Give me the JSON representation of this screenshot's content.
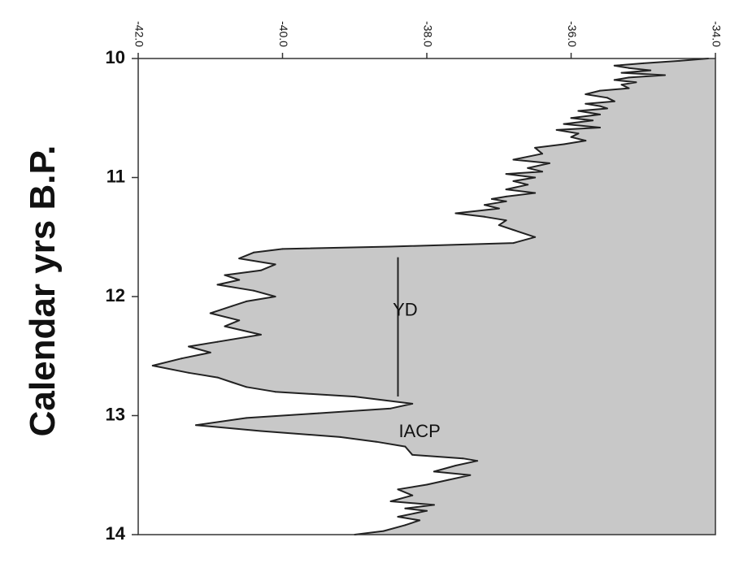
{
  "chart_data": {
    "type": "area",
    "title": "",
    "xlabel": "",
    "ylabel": "Calendar  yrs B.P.",
    "x_axis_position": "top",
    "x_tick_labels_rotated": true,
    "xlim": [
      -42.0,
      -34.0
    ],
    "x_reversed": false,
    "ylim": [
      10,
      14
    ],
    "y_reversed": true,
    "x_ticks": [
      -42.0,
      -40.0,
      -38.0,
      -36.0,
      -34.0
    ],
    "x_tick_labels": [
      "-42.0",
      "-40.0",
      "-38.0",
      "-36.0",
      "-34.0"
    ],
    "y_ticks": [
      10,
      11,
      12,
      13,
      14
    ],
    "y_tick_labels": [
      "10",
      "11",
      "12",
      "13",
      "14"
    ],
    "grid": false,
    "legend": "none",
    "fill_color": "#c8c8c8",
    "line_color": "#222222",
    "fill_side": "right",
    "series": [
      {
        "points": [
          [
            -34.1,
            10.0
          ],
          [
            -34.5,
            10.02
          ],
          [
            -35.0,
            10.04
          ],
          [
            -35.4,
            10.06
          ],
          [
            -35.2,
            10.08
          ],
          [
            -34.9,
            10.1
          ],
          [
            -35.3,
            10.12
          ],
          [
            -34.7,
            10.14
          ],
          [
            -35.2,
            10.16
          ],
          [
            -35.4,
            10.18
          ],
          [
            -35.1,
            10.2
          ],
          [
            -35.3,
            10.22
          ],
          [
            -35.2,
            10.25
          ],
          [
            -35.6,
            10.27
          ],
          [
            -35.8,
            10.3
          ],
          [
            -35.5,
            10.33
          ],
          [
            -35.4,
            10.36
          ],
          [
            -35.8,
            10.38
          ],
          [
            -35.6,
            10.4
          ],
          [
            -35.5,
            10.42
          ],
          [
            -35.9,
            10.44
          ],
          [
            -35.6,
            10.47
          ],
          [
            -36.0,
            10.5
          ],
          [
            -35.7,
            10.52
          ],
          [
            -36.1,
            10.55
          ],
          [
            -35.6,
            10.58
          ],
          [
            -36.2,
            10.6
          ],
          [
            -35.9,
            10.63
          ],
          [
            -36.0,
            10.66
          ],
          [
            -35.8,
            10.69
          ],
          [
            -36.1,
            10.72
          ],
          [
            -36.5,
            10.75
          ],
          [
            -36.4,
            10.8
          ],
          [
            -36.8,
            10.85
          ],
          [
            -36.3,
            10.88
          ],
          [
            -36.6,
            10.92
          ],
          [
            -36.4,
            10.95
          ],
          [
            -36.9,
            10.97
          ],
          [
            -36.5,
            11.0
          ],
          [
            -36.8,
            11.03
          ],
          [
            -36.6,
            11.06
          ],
          [
            -36.9,
            11.1
          ],
          [
            -36.5,
            11.13
          ],
          [
            -36.9,
            11.16
          ],
          [
            -37.1,
            11.18
          ],
          [
            -36.9,
            11.2
          ],
          [
            -37.2,
            11.23
          ],
          [
            -37.0,
            11.26
          ],
          [
            -37.6,
            11.3
          ],
          [
            -37.2,
            11.33
          ],
          [
            -36.9,
            11.36
          ],
          [
            -37.0,
            11.4
          ],
          [
            -36.8,
            11.44
          ],
          [
            -36.5,
            11.5
          ],
          [
            -36.8,
            11.55
          ],
          [
            -38.5,
            11.58
          ],
          [
            -40.0,
            11.6
          ],
          [
            -40.4,
            11.63
          ],
          [
            -40.6,
            11.68
          ],
          [
            -40.1,
            11.73
          ],
          [
            -40.3,
            11.78
          ],
          [
            -40.8,
            11.82
          ],
          [
            -40.6,
            11.86
          ],
          [
            -40.9,
            11.9
          ],
          [
            -40.4,
            11.95
          ],
          [
            -40.1,
            12.0
          ],
          [
            -40.5,
            12.04
          ],
          [
            -40.7,
            12.08
          ],
          [
            -41.0,
            12.14
          ],
          [
            -40.6,
            12.2
          ],
          [
            -40.8,
            12.25
          ],
          [
            -40.3,
            12.32
          ],
          [
            -40.9,
            12.38
          ],
          [
            -41.3,
            12.42
          ],
          [
            -41.0,
            12.47
          ],
          [
            -41.4,
            12.52
          ],
          [
            -41.8,
            12.58
          ],
          [
            -41.3,
            12.64
          ],
          [
            -40.9,
            12.68
          ],
          [
            -40.7,
            12.72
          ],
          [
            -40.5,
            12.76
          ],
          [
            -40.1,
            12.8
          ],
          [
            -39.0,
            12.84
          ],
          [
            -38.2,
            12.9
          ],
          [
            -38.5,
            12.94
          ],
          [
            -39.5,
            12.98
          ],
          [
            -40.5,
            13.02
          ],
          [
            -41.2,
            13.08
          ],
          [
            -40.3,
            13.13
          ],
          [
            -39.2,
            13.18
          ],
          [
            -38.7,
            13.22
          ],
          [
            -38.3,
            13.26
          ],
          [
            -38.2,
            13.33
          ],
          [
            -37.5,
            13.36
          ],
          [
            -37.3,
            13.38
          ],
          [
            -37.6,
            13.42
          ],
          [
            -37.9,
            13.47
          ],
          [
            -37.4,
            13.5
          ],
          [
            -37.7,
            13.54
          ],
          [
            -38.0,
            13.58
          ],
          [
            -38.4,
            13.62
          ],
          [
            -38.2,
            13.67
          ],
          [
            -38.5,
            13.72
          ],
          [
            -37.9,
            13.75
          ],
          [
            -38.3,
            13.78
          ],
          [
            -38.0,
            13.8
          ],
          [
            -38.4,
            13.85
          ],
          [
            -38.1,
            13.88
          ],
          [
            -38.3,
            13.92
          ],
          [
            -38.6,
            13.97
          ],
          [
            -39.0,
            14.0
          ]
        ]
      }
    ],
    "annotations": [
      {
        "text": "YD",
        "x": -38.3,
        "y": 12.12
      },
      {
        "text": "IACP",
        "x": -38.1,
        "y": 13.14
      }
    ],
    "vertical_markers": [
      {
        "x": -38.4,
        "y_start": 11.67,
        "y_end": 12.84
      }
    ]
  }
}
